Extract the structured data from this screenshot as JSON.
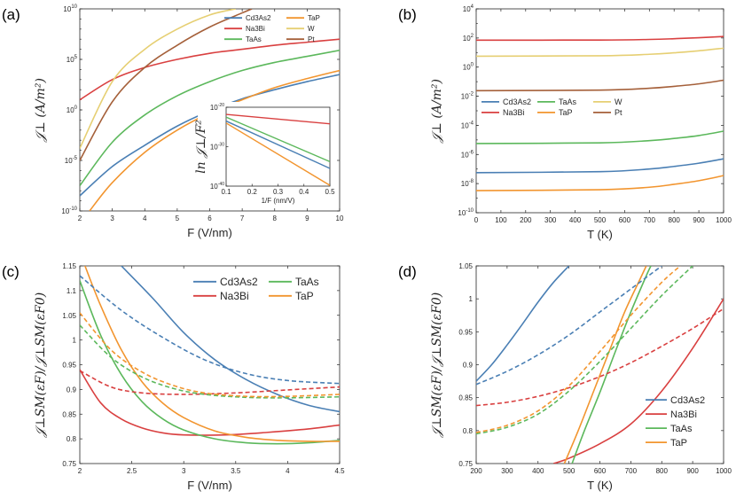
{
  "colors": {
    "Cd3As2": "#4a7fb4",
    "Na3Bi": "#d94040",
    "TaAs": "#5cb85c",
    "TaP": "#f2952f",
    "W": "#e6cf73",
    "Pt": "#a5603a"
  },
  "chart_data": [
    {
      "id": "a",
      "panel_label": "(a)",
      "type": "line",
      "xlabel": "F (V/nm)",
      "ylabel": "𝒥⊥ (A/m²)",
      "xlim": [
        2,
        10
      ],
      "ylim_log10": [
        -10,
        10
      ],
      "xticks": [
        2,
        3,
        4,
        5,
        6,
        7,
        8,
        9,
        10
      ],
      "yticks": [
        "10^-10",
        "10^-5",
        "10^0",
        "10^5",
        "10^10"
      ],
      "legend": {
        "position": "top-right",
        "columns": 2,
        "order": [
          "Cd3As2",
          "TaP",
          "Na3Bi",
          "W",
          "TaAs",
          "Pt"
        ]
      },
      "series": [
        {
          "name": "Cd3As2",
          "x": [
            2,
            3,
            4,
            5,
            6,
            7,
            8,
            9,
            10
          ],
          "log10_y": [
            -8.5,
            -5.6,
            -3.5,
            -1.6,
            -0.1,
            1.1,
            2.0,
            2.8,
            3.5
          ]
        },
        {
          "name": "Na3Bi",
          "x": [
            2,
            3,
            4,
            5,
            6,
            7,
            8,
            9,
            10
          ],
          "log10_y": [
            1.0,
            3.0,
            4.2,
            5.0,
            5.6,
            6.0,
            6.4,
            6.7,
            7.0
          ]
        },
        {
          "name": "TaAs",
          "x": [
            2,
            3,
            4,
            5,
            6,
            7,
            8,
            9,
            10
          ],
          "log10_y": [
            -7.5,
            -3.2,
            -0.5,
            1.4,
            2.8,
            3.9,
            4.7,
            5.3,
            5.9
          ]
        },
        {
          "name": "TaP",
          "x": [
            2.3,
            3,
            4,
            5,
            6,
            7,
            8,
            9,
            10
          ],
          "log10_y": [
            -10.0,
            -7.2,
            -4.2,
            -2.0,
            -0.3,
            1.0,
            2.2,
            3.1,
            3.9
          ]
        },
        {
          "name": "W",
          "x": [
            2,
            3,
            4,
            5,
            6,
            6.8
          ],
          "log10_y": [
            -3.8,
            2.8,
            6.0,
            8.0,
            9.4,
            10.0
          ]
        },
        {
          "name": "Pt",
          "x": [
            2,
            3,
            4,
            5,
            6,
            7,
            7.3
          ],
          "log10_y": [
            -5.0,
            0.8,
            4.2,
            6.4,
            8.2,
            9.6,
            10.0
          ]
        }
      ],
      "inset": {
        "xlabel": "1/F (nm/V)",
        "ylabel": "ln 𝒥⊥/F²",
        "xlim": [
          0.1,
          0.5
        ],
        "ylim_log10": [
          -40,
          -20
        ],
        "xticks": [
          "0.1",
          "0.2",
          "0.3",
          "0.4",
          "0.5"
        ],
        "yticks": [
          "10^-40",
          "10^-30",
          "10^-20"
        ],
        "series": [
          {
            "name": "Na3Bi",
            "x": [
              0.1,
              0.5
            ],
            "log10_y": [
              -21.8,
              -24.2
            ]
          },
          {
            "name": "TaAs",
            "x": [
              0.1,
              0.5
            ],
            "log10_y": [
              -22.5,
              -33.8
            ]
          },
          {
            "name": "Cd3As2",
            "x": [
              0.1,
              0.5
            ],
            "log10_y": [
              -23.5,
              -35.5
            ]
          },
          {
            "name": "TaP",
            "x": [
              0.1,
              0.5
            ],
            "log10_y": [
              -24.0,
              -39.8
            ]
          }
        ]
      }
    },
    {
      "id": "b",
      "panel_label": "(b)",
      "type": "line",
      "xlabel": "T (K)",
      "ylabel": "𝒥⊥ (A/m²)",
      "xlim": [
        0,
        1000
      ],
      "ylim_log10": [
        -10,
        4
      ],
      "xticks": [
        0,
        100,
        200,
        300,
        400,
        500,
        600,
        700,
        800,
        900,
        1000
      ],
      "yticks": [
        "10^-10",
        "10^-8",
        "10^-6",
        "10^-4",
        "10^-2",
        "10^0",
        "10^2",
        "10^4"
      ],
      "legend": {
        "position": "middle-left",
        "columns": 3,
        "order": [
          "Cd3As2",
          "TaAs",
          "W",
          "Na3Bi",
          "TaP",
          "Pt"
        ]
      },
      "series": [
        {
          "name": "Na3Bi",
          "x": [
            0,
            500,
            700,
            800,
            900,
            1000
          ],
          "log10_y": [
            1.85,
            1.86,
            1.9,
            1.95,
            2.02,
            2.1
          ]
        },
        {
          "name": "W",
          "x": [
            0,
            500,
            700,
            800,
            900,
            1000
          ],
          "log10_y": [
            0.75,
            0.78,
            0.88,
            0.98,
            1.12,
            1.3
          ]
        },
        {
          "name": "Pt",
          "x": [
            0,
            500,
            700,
            800,
            900,
            1000
          ],
          "log10_y": [
            -1.62,
            -1.58,
            -1.45,
            -1.32,
            -1.15,
            -0.9
          ]
        },
        {
          "name": "TaAs",
          "x": [
            0,
            500,
            700,
            800,
            900,
            1000
          ],
          "log10_y": [
            -5.25,
            -5.2,
            -5.05,
            -4.9,
            -4.7,
            -4.4
          ]
        },
        {
          "name": "Cd3As2",
          "x": [
            0,
            500,
            700,
            800,
            900,
            1000
          ],
          "log10_y": [
            -7.25,
            -7.18,
            -7.0,
            -6.82,
            -6.6,
            -6.3
          ]
        },
        {
          "name": "TaP",
          "x": [
            0,
            500,
            700,
            800,
            900,
            1000
          ],
          "log10_y": [
            -8.48,
            -8.42,
            -8.25,
            -8.05,
            -7.8,
            -7.45
          ]
        }
      ]
    },
    {
      "id": "c",
      "panel_label": "(c)",
      "type": "line",
      "xlabel": "F (V/nm)",
      "ylabel": "𝒥⊥SM(εF)/𝒥⊥SM(εF0)",
      "xlim": [
        2,
        4.5
      ],
      "ylim": [
        0.75,
        1.15
      ],
      "xticks": [
        "2",
        "2.5",
        "3",
        "3.5",
        "4",
        "4.5"
      ],
      "yticks": [
        "0.75",
        "0.8",
        "0.85",
        "0.9",
        "0.95",
        "1",
        "1.05",
        "1.1",
        "1.15"
      ],
      "legend": {
        "position": "top-right",
        "columns": 2,
        "order": [
          "Cd3As2",
          "TaAs",
          "Na3Bi",
          "TaP"
        ]
      },
      "series": [
        {
          "name": "Cd3As2",
          "style": "solid",
          "x": [
            2.4,
            2.7,
            3.0,
            3.3,
            3.6,
            3.9,
            4.2,
            4.5
          ],
          "y": [
            1.15,
            1.085,
            1.015,
            0.96,
            0.92,
            0.89,
            0.868,
            0.855
          ]
        },
        {
          "name": "Na3Bi",
          "style": "solid",
          "x": [
            2.0,
            2.2,
            2.4,
            2.6,
            2.8,
            3.0,
            3.4,
            3.8,
            4.2,
            4.5
          ],
          "y": [
            0.94,
            0.873,
            0.84,
            0.822,
            0.812,
            0.808,
            0.808,
            0.813,
            0.82,
            0.828
          ]
        },
        {
          "name": "TaAs",
          "style": "solid",
          "x": [
            2.0,
            2.2,
            2.4,
            2.6,
            2.8,
            3.0,
            3.3,
            3.6,
            3.9,
            4.2,
            4.5
          ],
          "y": [
            1.12,
            1.01,
            0.93,
            0.875,
            0.84,
            0.818,
            0.8,
            0.792,
            0.79,
            0.792,
            0.797
          ]
        },
        {
          "name": "TaP",
          "style": "solid",
          "x": [
            2.05,
            2.2,
            2.4,
            2.6,
            2.8,
            3.0,
            3.3,
            3.6,
            3.9,
            4.2,
            4.5
          ],
          "y": [
            1.15,
            1.07,
            0.98,
            0.915,
            0.872,
            0.843,
            0.816,
            0.803,
            0.797,
            0.795,
            0.795
          ]
        },
        {
          "name": "Cd3As2",
          "style": "dashed",
          "x": [
            2.0,
            2.4,
            2.8,
            3.2,
            3.6,
            4.0,
            4.5
          ],
          "y": [
            1.13,
            1.06,
            1.005,
            0.96,
            0.932,
            0.918,
            0.912
          ]
        },
        {
          "name": "Na3Bi",
          "style": "dashed",
          "x": [
            2.0,
            2.3,
            2.6,
            3.0,
            3.5,
            4.0,
            4.5
          ],
          "y": [
            0.938,
            0.905,
            0.893,
            0.89,
            0.893,
            0.899,
            0.905
          ]
        },
        {
          "name": "TaAs",
          "style": "dashed",
          "x": [
            2.0,
            2.3,
            2.6,
            2.9,
            3.2,
            3.6,
            4.0,
            4.5
          ],
          "y": [
            1.03,
            0.965,
            0.925,
            0.902,
            0.89,
            0.884,
            0.883,
            0.885
          ]
        },
        {
          "name": "TaP",
          "style": "dashed",
          "x": [
            2.0,
            2.3,
            2.6,
            2.9,
            3.2,
            3.6,
            4.0,
            4.5
          ],
          "y": [
            1.055,
            0.98,
            0.935,
            0.908,
            0.893,
            0.886,
            0.886,
            0.89
          ]
        }
      ]
    },
    {
      "id": "d",
      "panel_label": "(d)",
      "type": "line",
      "xlabel": "T (K)",
      "ylabel": "𝒥⊥SM(εF)/𝒥⊥SM(εF0)",
      "xlim": [
        200,
        1000
      ],
      "ylim": [
        0.75,
        1.05
      ],
      "xticks": [
        "200",
        "300",
        "400",
        "500",
        "600",
        "700",
        "800",
        "900",
        "1000"
      ],
      "yticks": [
        "0.75",
        "0.8",
        "0.85",
        "0.9",
        "0.95",
        "1",
        "1.05"
      ],
      "legend": {
        "position": "bottom-right",
        "columns": 1,
        "order": [
          "Cd3As2",
          "Na3Bi",
          "TaAs",
          "TaP"
        ]
      },
      "series": [
        {
          "name": "Cd3As2",
          "style": "solid",
          "x": [
            200,
            250,
            300,
            350,
            400,
            450,
            500
          ],
          "y": [
            0.875,
            0.9,
            0.93,
            0.962,
            0.995,
            1.025,
            1.05
          ]
        },
        {
          "name": "Na3Bi",
          "style": "solid",
          "x": [
            450,
            500,
            600,
            700,
            800,
            900,
            1000
          ],
          "y": [
            0.75,
            0.758,
            0.78,
            0.81,
            0.86,
            0.925,
            1.0
          ]
        },
        {
          "name": "TaAs",
          "style": "solid",
          "x": [
            510,
            550,
            600,
            650,
            700,
            750,
            765
          ],
          "y": [
            0.75,
            0.8,
            0.858,
            0.92,
            0.98,
            1.035,
            1.05
          ]
        },
        {
          "name": "TaP",
          "style": "solid",
          "x": [
            485,
            530,
            580,
            630,
            680,
            730,
            750
          ],
          "y": [
            0.75,
            0.8,
            0.86,
            0.92,
            0.98,
            1.03,
            1.05
          ]
        },
        {
          "name": "Cd3As2",
          "style": "dashed",
          "x": [
            200,
            300,
            400,
            500,
            600,
            700,
            800
          ],
          "y": [
            0.87,
            0.89,
            0.915,
            0.945,
            0.98,
            1.015,
            1.05
          ]
        },
        {
          "name": "Na3Bi",
          "style": "dashed",
          "x": [
            200,
            300,
            400,
            500,
            600,
            700,
            800,
            900,
            1000
          ],
          "y": [
            0.838,
            0.843,
            0.852,
            0.865,
            0.882,
            0.903,
            0.928,
            0.955,
            0.985
          ]
        },
        {
          "name": "TaAs",
          "style": "dashed",
          "x": [
            200,
            300,
            400,
            500,
            600,
            700,
            800,
            900
          ],
          "y": [
            0.795,
            0.805,
            0.825,
            0.86,
            0.905,
            0.955,
            1.005,
            1.05
          ]
        },
        {
          "name": "TaP",
          "style": "dashed",
          "x": [
            200,
            300,
            400,
            500,
            600,
            700,
            800,
            860
          ],
          "y": [
            0.797,
            0.808,
            0.83,
            0.868,
            0.92,
            0.975,
            1.025,
            1.05
          ]
        }
      ]
    }
  ]
}
